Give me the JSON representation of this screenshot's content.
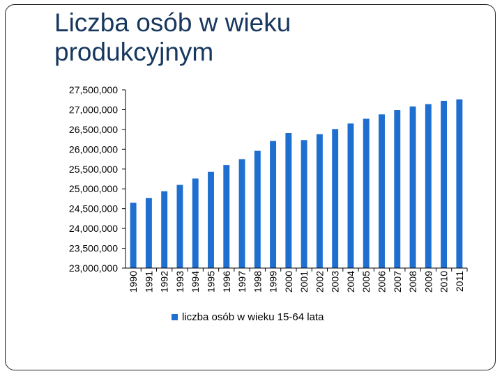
{
  "title": "Liczba osób w wieku produkcyjnym",
  "colors": {
    "bar": "#1f6fd1",
    "title": "#17375e",
    "axis": "#000000"
  },
  "chart_data": {
    "type": "bar",
    "title": "Liczba osób w wieku produkcyjnym",
    "categories": [
      "1990",
      "1991",
      "1992",
      "1993",
      "1994",
      "1995",
      "1996",
      "1997",
      "1998",
      "1999",
      "2000",
      "2001",
      "2002",
      "2003",
      "2004",
      "2005",
      "2006",
      "2007",
      "2008",
      "2009",
      "2010",
      "2011"
    ],
    "series": [
      {
        "name": "liczba osób w wieku 15-64 lata",
        "values": [
          24650000,
          24770000,
          24940000,
          25100000,
          25260000,
          25430000,
          25600000,
          25750000,
          25960000,
          26210000,
          26410000,
          26230000,
          26380000,
          26510000,
          26650000,
          26770000,
          26880000,
          26990000,
          27080000,
          27140000,
          27220000,
          27260000
        ]
      }
    ],
    "ylim": [
      23000000,
      27500000
    ],
    "yticks": [
      23000000,
      23500000,
      24000000,
      24500000,
      25000000,
      25500000,
      26000000,
      26500000,
      27000000,
      27500000
    ],
    "ytick_labels": [
      "23,000,000",
      "23,500,000",
      "24,000,000",
      "24,500,000",
      "25,000,000",
      "25,500,000",
      "26,000,000",
      "26,500,000",
      "27,000,000",
      "27,500,000"
    ],
    "grid": false,
    "legend": "bottom"
  }
}
